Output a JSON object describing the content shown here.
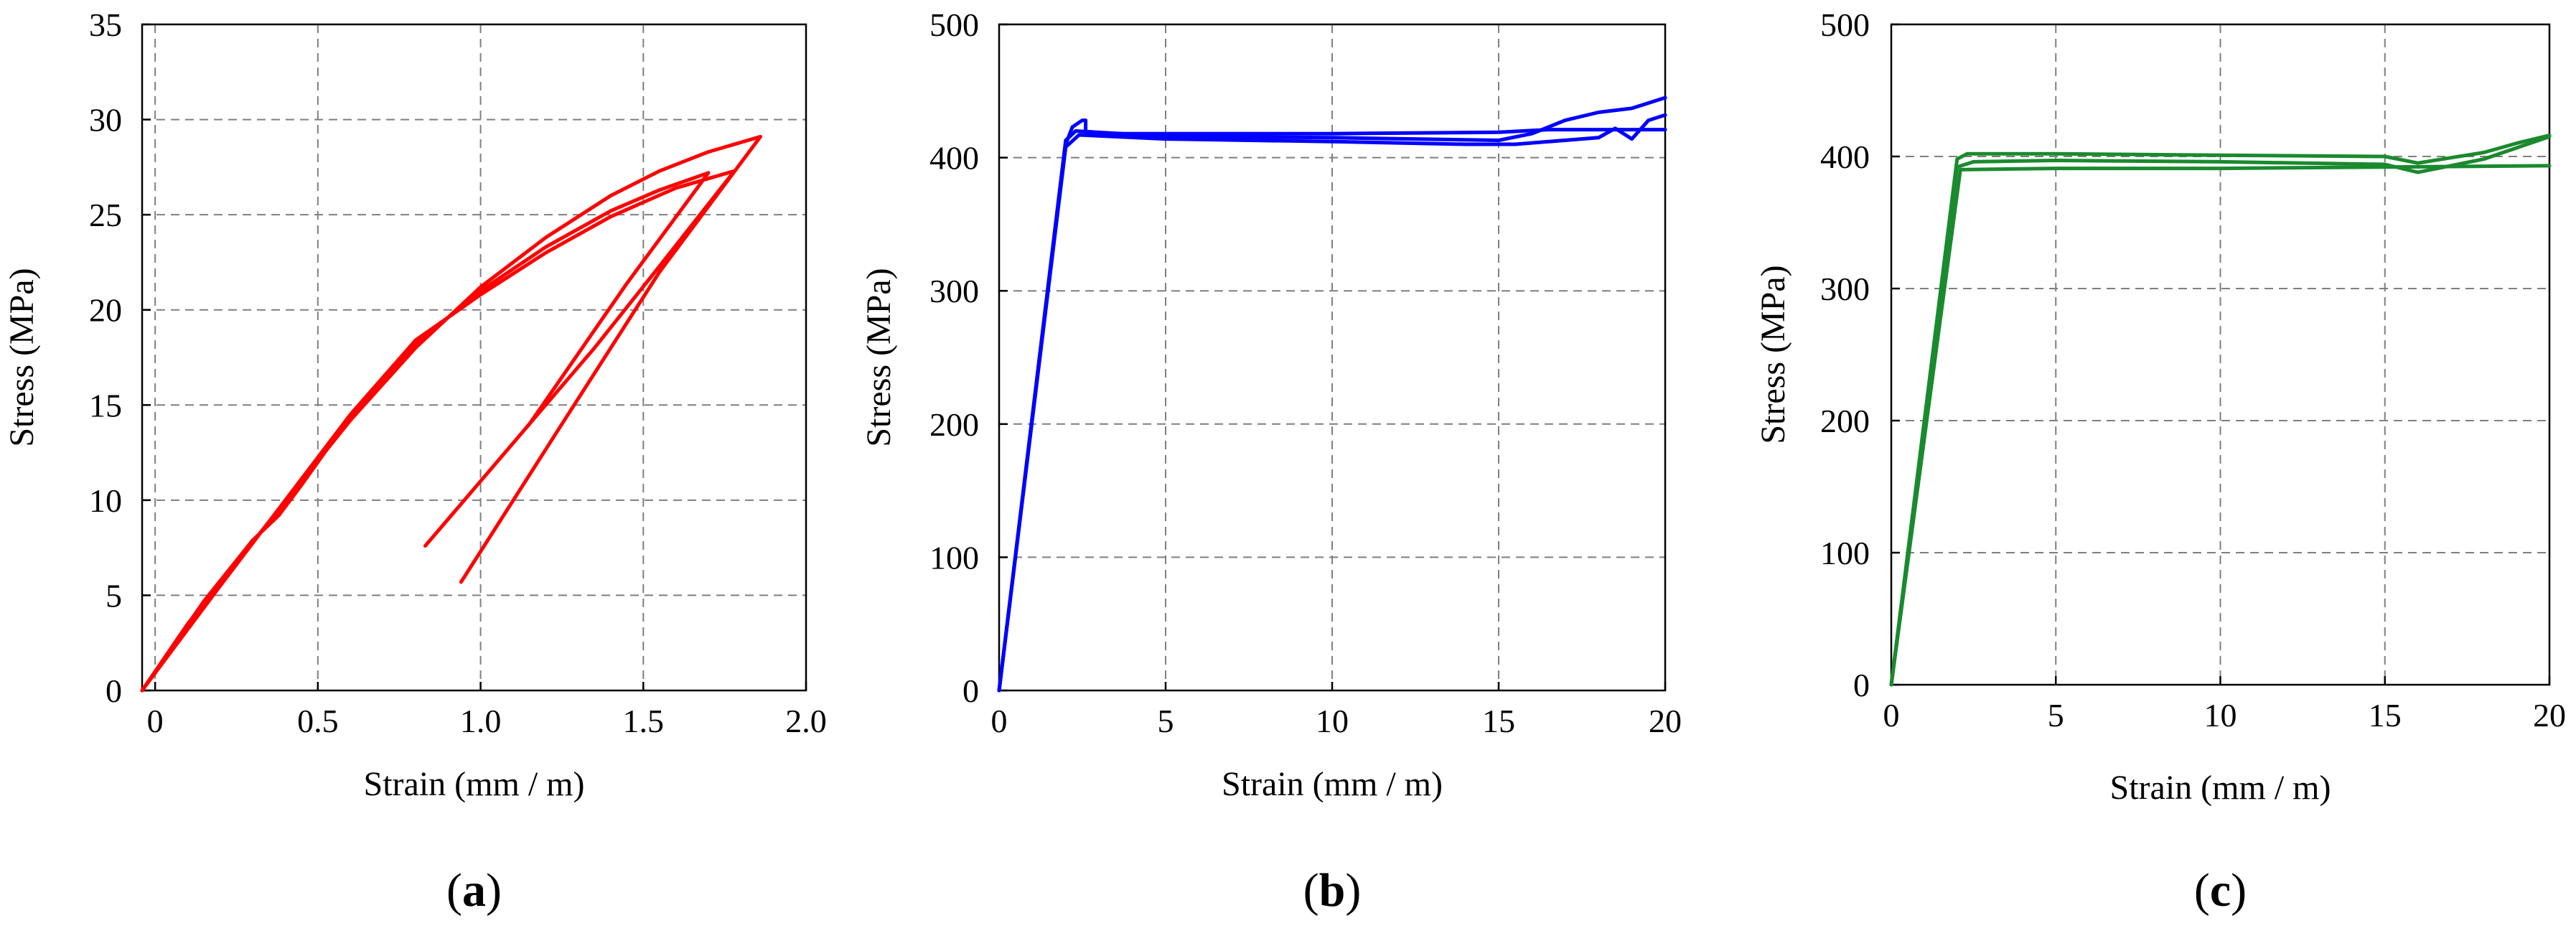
{
  "chart_data": [
    {
      "type": "line",
      "panel_label": "a",
      "xlabel": "Strain (mm / m)",
      "ylabel": "Stress (MPa)",
      "xlim": [
        -0.04,
        2.0
      ],
      "ylim": [
        0,
        35
      ],
      "xticks": [
        0,
        0.5,
        1.0,
        1.5,
        2.0
      ],
      "xtick_labels": [
        "0",
        "0.5",
        "1.0",
        "1.5",
        "2.0"
      ],
      "yticks": [
        0,
        5,
        10,
        15,
        20,
        25,
        30,
        35
      ],
      "ytick_labels": [
        "0",
        "5",
        "10",
        "15",
        "20",
        "25",
        "30",
        "35"
      ],
      "grid": true,
      "color": "#ff0000",
      "series": [
        {
          "x": [
            -0.04,
            0.1,
            0.3,
            0.45,
            0.6,
            0.8,
            1.0,
            1.2,
            1.4,
            1.55,
            1.7,
            1.86,
            1.55,
            1.25,
            0.94
          ],
          "y": [
            0,
            3.5,
            7.8,
            11.0,
            14.2,
            18.0,
            21.2,
            23.8,
            26.0,
            27.3,
            28.3,
            29.1,
            22.0,
            14.0,
            5.7
          ]
        },
        {
          "x": [
            -0.04,
            0.15,
            0.3,
            0.38,
            0.45,
            0.6,
            0.8,
            1.0,
            1.2,
            1.4,
            1.55,
            1.7,
            1.45,
            1.15,
            0.83
          ],
          "y": [
            0,
            4.7,
            7.9,
            9.2,
            10.8,
            14.4,
            18.2,
            21.0,
            23.3,
            25.2,
            26.3,
            27.2,
            21.4,
            14.0,
            7.6
          ]
        },
        {
          "x": [
            -0.04,
            0.2,
            0.4,
            0.6,
            0.8,
            1.0,
            1.2,
            1.4,
            1.6,
            1.78,
            1.55,
            1.35,
            1.14
          ],
          "y": [
            0,
            5.5,
            10.0,
            14.5,
            18.4,
            20.8,
            23.0,
            24.9,
            26.4,
            27.3,
            22.3,
            18.0,
            13.8
          ]
        }
      ]
    },
    {
      "type": "line",
      "panel_label": "b",
      "xlabel": "Strain (mm / m)",
      "ylabel": "Stress (MPa)",
      "xlim": [
        0,
        20
      ],
      "ylim": [
        0,
        500
      ],
      "xticks": [
        0,
        5,
        10,
        15,
        20
      ],
      "xtick_labels": [
        "0",
        "5",
        "10",
        "15",
        "20"
      ],
      "yticks": [
        0,
        100,
        200,
        300,
        400,
        500
      ],
      "ytick_labels": [
        "0",
        "100",
        "200",
        "300",
        "400",
        "500"
      ],
      "grid": true,
      "color": "#0000ff",
      "series": [
        {
          "x": [
            0,
            2.0,
            2.2,
            2.5,
            2.6,
            2.6,
            5,
            10,
            15,
            16.5,
            18,
            19,
            20
          ],
          "y": [
            0,
            410,
            423,
            428,
            428,
            418,
            418,
            418,
            419,
            421,
            421,
            421,
            421
          ]
        },
        {
          "x": [
            0,
            2.0,
            2.3,
            5,
            10,
            15,
            16,
            17,
            18,
            19,
            19.5,
            20
          ],
          "y": [
            0,
            413,
            420,
            416,
            415,
            413,
            418,
            428,
            434,
            437,
            441,
            445
          ]
        },
        {
          "x": [
            0,
            2.0,
            2.4,
            5,
            10,
            14,
            15.5,
            16.5,
            18,
            18.5,
            19,
            19.5,
            20
          ],
          "y": [
            0,
            408,
            417,
            414,
            412,
            410,
            410,
            412,
            415,
            422,
            414,
            428,
            432
          ]
        }
      ]
    },
    {
      "type": "line",
      "panel_label": "c",
      "xlabel": "Strain (mm / m)",
      "ylabel": "Stress (MPa)",
      "xlim": [
        0,
        20
      ],
      "ylim": [
        0,
        500
      ],
      "xticks": [
        0,
        5,
        10,
        15,
        20
      ],
      "xtick_labels": [
        "0",
        "5",
        "10",
        "15",
        "20"
      ],
      "yticks": [
        0,
        100,
        200,
        300,
        400,
        500
      ],
      "ytick_labels": [
        "0",
        "100",
        "200",
        "300",
        "400",
        "500"
      ],
      "grid": true,
      "color": "#1a8a2e",
      "series": [
        {
          "x": [
            0,
            2.0,
            2.3,
            5,
            10,
            15,
            16,
            17,
            18,
            19,
            20
          ],
          "y": [
            0,
            398,
            402,
            402,
            401,
            400,
            395,
            399,
            403,
            410,
            416
          ]
        },
        {
          "x": [
            0,
            2.0,
            2.5,
            5,
            10,
            15,
            16,
            18,
            20
          ],
          "y": [
            0,
            392,
            396,
            397,
            396,
            394,
            388,
            398,
            415
          ]
        },
        {
          "x": [
            0,
            2.1,
            5,
            10,
            15,
            20
          ],
          "y": [
            0,
            390,
            391,
            391,
            392,
            393
          ]
        }
      ]
    }
  ]
}
